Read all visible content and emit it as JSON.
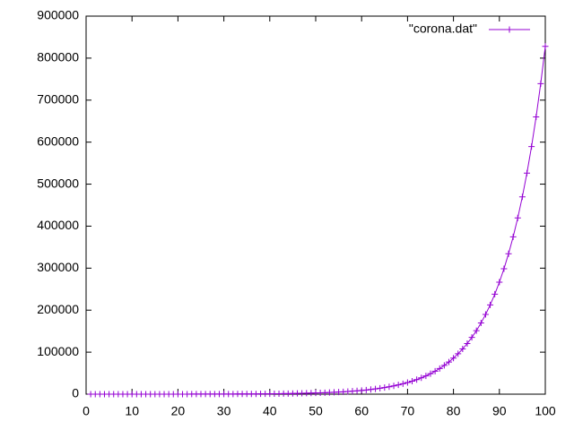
{
  "chart_data": {
    "type": "line",
    "xlim": [
      0,
      100
    ],
    "xticks": [
      0,
      10,
      20,
      30,
      40,
      50,
      60,
      70,
      80,
      90,
      100
    ],
    "ylim": [
      0,
      900000
    ],
    "yticks": [
      0,
      100000,
      200000,
      300000,
      400000,
      500000,
      600000,
      700000,
      800000,
      900000
    ],
    "legend": "top-right",
    "series": [
      {
        "name": "\"corona.dat\"",
        "color": "#9400d3",
        "x": [
          1,
          2,
          3,
          4,
          5,
          6,
          7,
          8,
          9,
          10,
          11,
          12,
          13,
          14,
          15,
          16,
          17,
          18,
          19,
          20,
          21,
          22,
          23,
          24,
          25,
          26,
          27,
          28,
          29,
          30,
          31,
          32,
          33,
          34,
          35,
          36,
          37,
          38,
          39,
          40,
          41,
          42,
          43,
          44,
          45,
          46,
          47,
          48,
          49,
          50,
          51,
          52,
          53,
          54,
          55,
          56,
          57,
          58,
          59,
          60,
          61,
          62,
          63,
          64,
          65,
          66,
          67,
          68,
          69,
          70,
          71,
          72,
          73,
          74,
          75,
          76,
          77,
          78,
          79,
          80,
          81,
          82,
          83,
          84,
          85,
          86,
          87,
          88,
          89,
          90,
          91,
          92,
          93,
          94,
          95,
          96,
          97,
          98,
          99,
          100
        ],
        "values": [
          11,
          12,
          14,
          15,
          17,
          19,
          22,
          24,
          27,
          31,
          34,
          38,
          43,
          48,
          54,
          61,
          68,
          76,
          85,
          96,
          107,
          120,
          134,
          150,
          168,
          189,
          211,
          237,
          265,
          297,
          332,
          372,
          417,
          467,
          523,
          586,
          656,
          735,
          823,
          922,
          1033,
          1157,
          1296,
          1452,
          1626,
          1821,
          2039,
          2284,
          2558,
          2865,
          3209,
          3594,
          4025,
          4508,
          5049,
          5655,
          6334,
          7094,
          7945,
          8898,
          9966,
          11162,
          12502,
          14002,
          15682,
          17564,
          19671,
          22032,
          24676,
          27637,
          30953,
          34668,
          38828,
          43487,
          48706,
          54550,
          61096,
          68428,
          76639,
          85836,
          96136,
          107672,
          120593,
          135064,
          151272,
          169425,
          189756,
          212527,
          238030,
          266594,
          298585,
          334415,
          374545,
          419490,
          469829,
          526209,
          589354,
          660077,
          739286,
          828000
        ]
      }
    ]
  }
}
